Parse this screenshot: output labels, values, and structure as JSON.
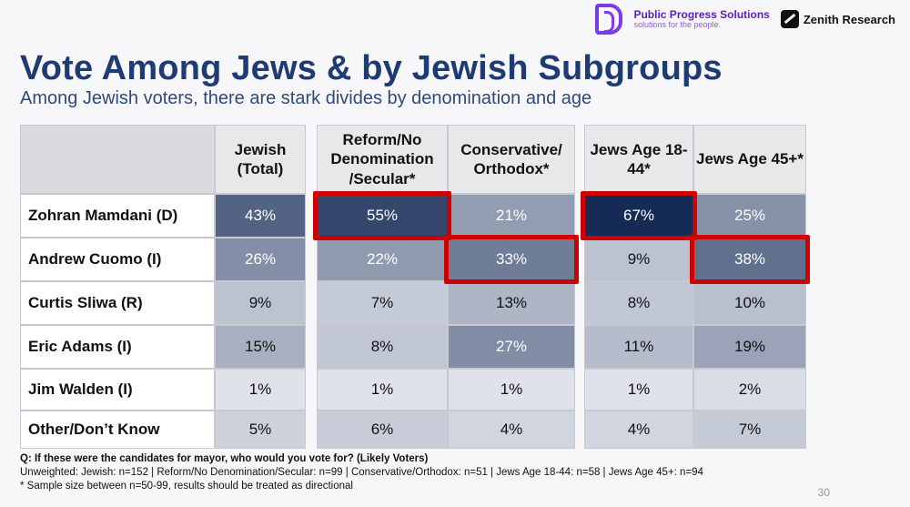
{
  "logos": {
    "pps_name": "Public Progress Solutions",
    "pps_tagline": "solutions for the people.",
    "zenith": "Zenith Research"
  },
  "title": "Vote Among Jews & by Jewish Subgroups",
  "subtitle": "Among Jewish voters, there are stark divides by denomination and age",
  "chart_data": {
    "type": "table",
    "columns": [
      "Jewish (Total)",
      "Reform/No Denomination /Secular*",
      "Conservative/ Orthodox*",
      "Jews Age 18-44*",
      "Jews Age 45+*"
    ],
    "rows": [
      {
        "label": "Zohran Mamdani (D)",
        "values": [
          43,
          55,
          21,
          67,
          25
        ]
      },
      {
        "label": "Andrew Cuomo (I)",
        "values": [
          26,
          22,
          33,
          9,
          38
        ]
      },
      {
        "label": "Curtis Sliwa (R)",
        "values": [
          9,
          7,
          13,
          8,
          10
        ]
      },
      {
        "label": "Eric Adams (I)",
        "values": [
          15,
          8,
          27,
          11,
          19
        ]
      },
      {
        "label": "Jim Walden (I)",
        "values": [
          1,
          1,
          1,
          1,
          2
        ]
      },
      {
        "label": "Other/Don’t Know",
        "values": [
          5,
          6,
          4,
          4,
          7
        ]
      }
    ],
    "value_suffix": "%",
    "highlighted": [
      [
        0,
        1
      ],
      [
        1,
        2
      ],
      [
        0,
        3
      ],
      [
        1,
        4
      ]
    ],
    "colors": {
      "highlight": "#d10000",
      "dark": "#152a55",
      "light": "#e6e9ef"
    }
  },
  "footer": {
    "question": "Q: If these were the candidates for mayor, who would you vote for? (Likely Voters)",
    "unweighted": "Unweighted: Jewish: n=152 | Reform/No Denomination/Secular: n=99 | Conservative/Orthodox: n=51 | Jews Age 18-44: n=58 | Jews Age 45+: n=94",
    "note": "* Sample size between n=50-99, results should be treated as directional"
  },
  "page_number": "30"
}
